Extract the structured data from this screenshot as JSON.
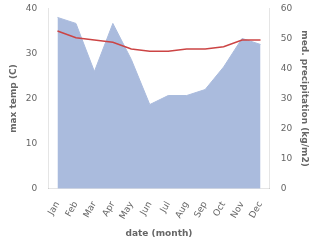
{
  "chart_data": {
    "type": "line",
    "xlabel": "date (month)",
    "ylabel": "max temp (C)",
    "y2label": "med. precipitation (kg/m2)",
    "categories": [
      "Jan",
      "Feb",
      "Mar",
      "Apr",
      "May",
      "Jun",
      "Jul",
      "Aug",
      "Sep",
      "Oct",
      "Nov",
      "Dec"
    ],
    "series": [
      {
        "type": "line",
        "color": "#cc4444",
        "values": [
          35.0,
          33.5,
          33.0,
          32.5,
          31.0,
          30.5,
          30.5,
          31.0,
          31.0,
          31.5,
          33.0,
          33.0
        ]
      },
      {
        "type": "area",
        "color": "#aabbdd",
        "axis": "y2",
        "values": [
          57.0,
          55.0,
          39.0,
          55.0,
          43.0,
          28.0,
          31.0,
          31.0,
          33.0,
          40.5,
          50.0,
          48.0
        ]
      }
    ],
    "ylim": [
      0,
      40
    ],
    "yticks": [
      0,
      10,
      20,
      30,
      40
    ],
    "y2lim": [
      0,
      60
    ],
    "y2ticks": [
      0,
      10,
      20,
      30,
      40,
      50,
      60
    ],
    "grid": false
  }
}
